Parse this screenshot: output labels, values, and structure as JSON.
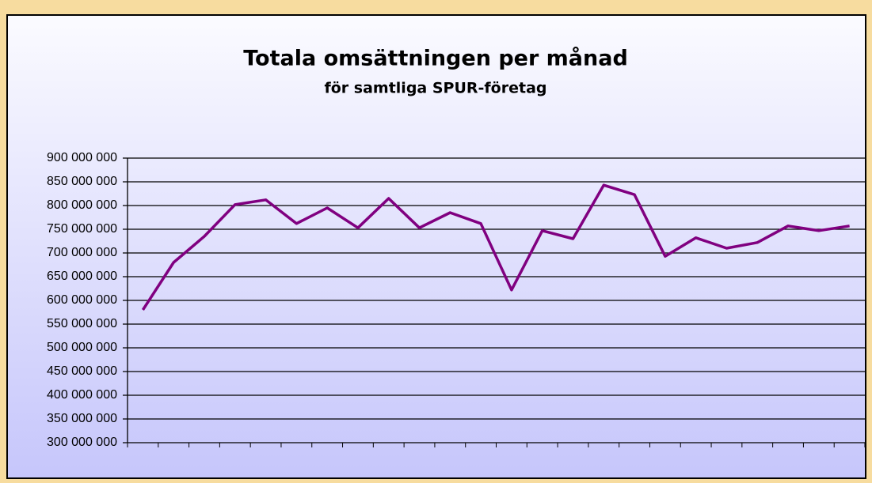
{
  "chart_data": {
    "type": "line",
    "title": "Totala omsättningen per månad",
    "subtitle": "för samtliga SPUR-företag",
    "categories": [
      null,
      null,
      null,
      null,
      null,
      null,
      null,
      null,
      null,
      null,
      null,
      null,
      null,
      null,
      null,
      null,
      null,
      null,
      null,
      null,
      null,
      null,
      null,
      null
    ],
    "series": [
      {
        "color": "#800080",
        "values": [
          580000000,
          680000000,
          735000000,
          802000000,
          812000000,
          762000000,
          795000000,
          753000000,
          815000000,
          753000000,
          785000000,
          762000000,
          622000000,
          747000000,
          730000000,
          843000000,
          823000000,
          693000000,
          732000000,
          710000000,
          722000000,
          757000000,
          747000000,
          757000000
        ]
      }
    ],
    "ylim": [
      300000000,
      900000000
    ],
    "yticks": [
      {
        "value": 300000000,
        "label": "300 000 000"
      },
      {
        "value": 350000000,
        "label": "350 000 000"
      },
      {
        "value": 400000000,
        "label": "400 000 000"
      },
      {
        "value": 450000000,
        "label": "450 000 000"
      },
      {
        "value": 500000000,
        "label": "500 000 000"
      },
      {
        "value": 550000000,
        "label": "550 000 000"
      },
      {
        "value": 600000000,
        "label": "600 000 000"
      },
      {
        "value": 650000000,
        "label": "650 000 000"
      },
      {
        "value": 700000000,
        "label": "700 000 000"
      },
      {
        "value": 750000000,
        "label": "750 000 000"
      },
      {
        "value": 800000000,
        "label": "800 000 000"
      },
      {
        "value": 850000000,
        "label": "850 000 000"
      },
      {
        "value": 900000000,
        "label": "900 000 000"
      }
    ],
    "grid": true
  }
}
